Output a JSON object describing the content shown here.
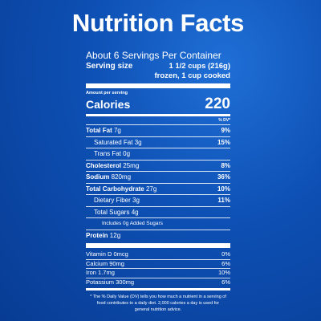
{
  "label": {
    "title": "Nutrition Facts",
    "servings_per_container": "About 6 Servings Per Container",
    "serving_size_label": "Serving size",
    "serving_size_value": "1 1/2 cups (216g)",
    "serving_size_note": "frozen, 1 cup cooked",
    "amount_per_serving": "Amount per serving",
    "calories_label": "Calories",
    "calories_value": "220",
    "dv_header": "% DV*",
    "nutrients": [
      {
        "name": "Total Fat",
        "amount": "7g",
        "dv": "9%"
      },
      {
        "name": "Saturated Fat",
        "amount": "3g",
        "dv": "15%"
      },
      {
        "name": "Trans Fat",
        "amount": "0g",
        "dv": ""
      },
      {
        "name": "Cholesterol",
        "amount": "25mg",
        "dv": "8%"
      },
      {
        "name": "Sodium",
        "amount": "820mg",
        "dv": "36%"
      },
      {
        "name": "Total Carbohydrate",
        "amount": "27g",
        "dv": "10%"
      },
      {
        "name": "Dietary Fiber",
        "amount": "3g",
        "dv": "11%"
      },
      {
        "name": "Total Sugars",
        "amount": "4g",
        "dv": ""
      },
      {
        "name": "Includes 0g Added Sugars",
        "amount": "",
        "dv": ""
      },
      {
        "name": "Protein",
        "amount": "12g",
        "dv": ""
      }
    ],
    "vitamins": [
      {
        "name": "Vitamin D",
        "amount": "0mcg",
        "dv": "0%"
      },
      {
        "name": "Calcium",
        "amount": "90mg",
        "dv": "6%"
      },
      {
        "name": "Iron",
        "amount": "1.7mg",
        "dv": "10%"
      },
      {
        "name": "Potassium",
        "amount": "300mg",
        "dv": "6%"
      }
    ],
    "footnote": "* The % Daily Value (DV) tells you how much a nutrient in a serving of food contributes to a daily diet. 2,000 calories a day is used for general nutrition advice."
  },
  "colors": {
    "background": "#0d4fb3",
    "text": "#ffffff"
  }
}
